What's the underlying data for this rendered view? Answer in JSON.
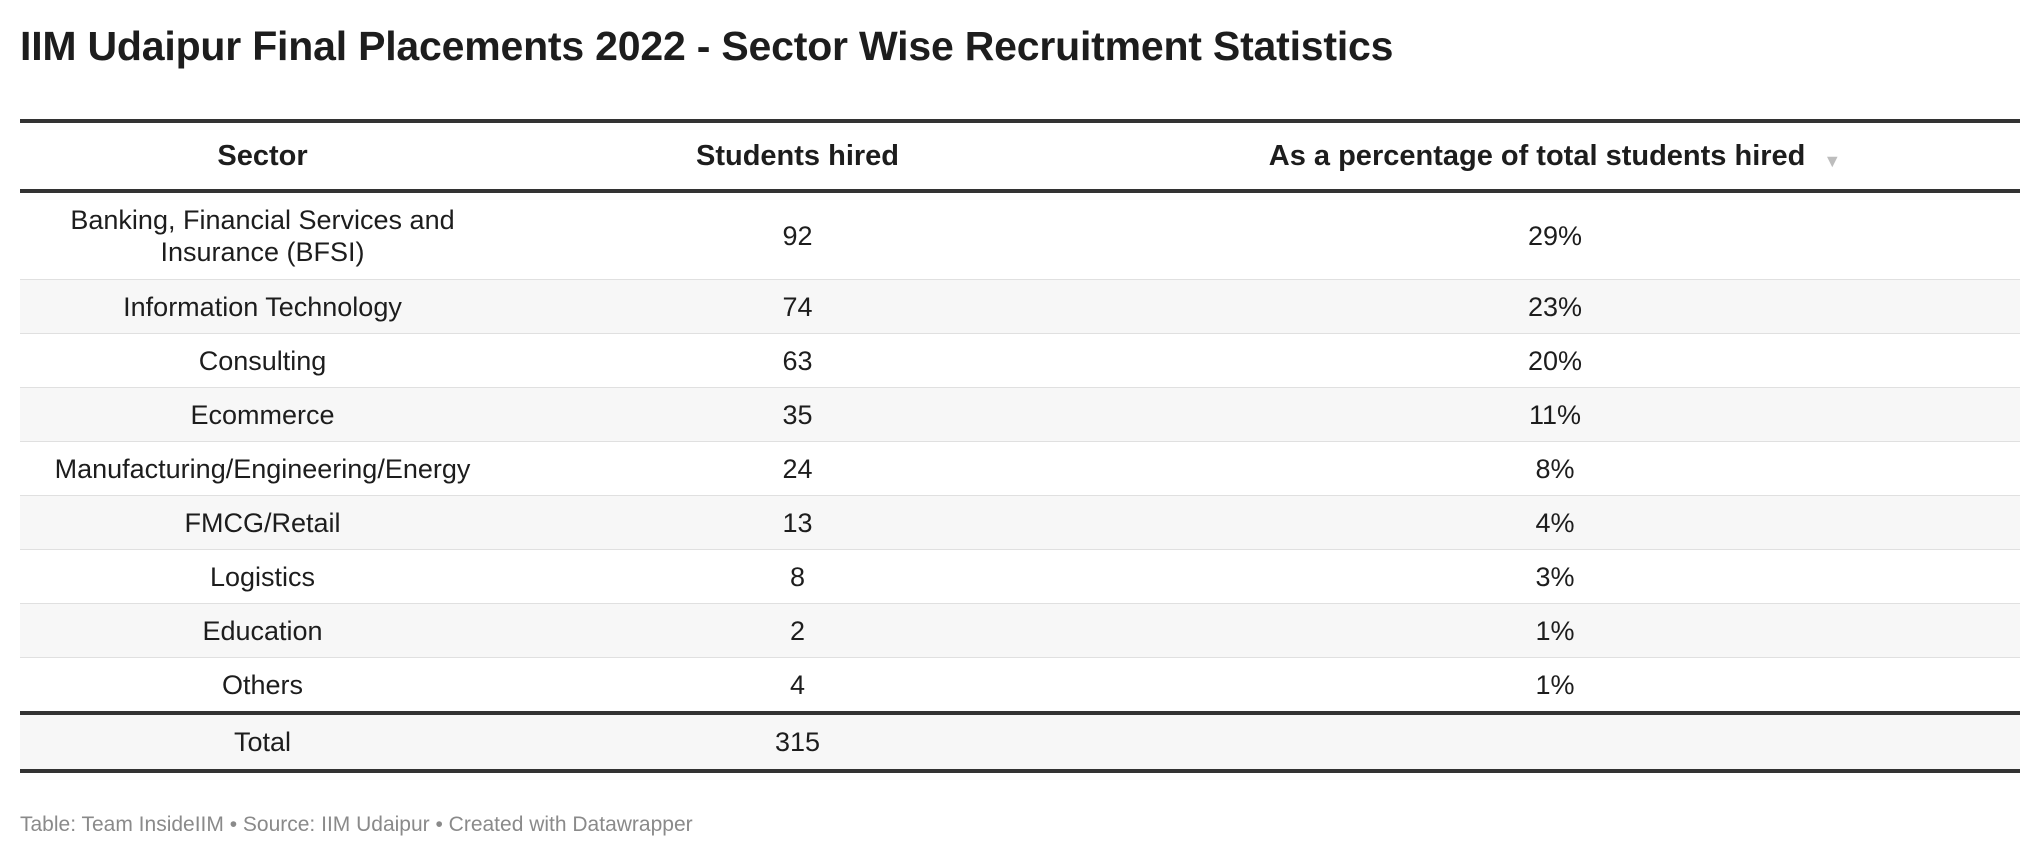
{
  "title": "IIM Udaipur Final Placements 2022 - Sector Wise Recruitment Statistics",
  "columns": [
    "Sector",
    "Students hired",
    "As a percentage of total students hired"
  ],
  "sort_icon": "triangle-down-icon",
  "rows": [
    {
      "sector": "Banking, Financial Services and Insurance (BFSI)",
      "hired": "92",
      "percent": "29%"
    },
    {
      "sector": "Information Technology",
      "hired": "74",
      "percent": "23%"
    },
    {
      "sector": "Consulting",
      "hired": "63",
      "percent": "20%"
    },
    {
      "sector": "Ecommerce",
      "hired": "35",
      "percent": "11%"
    },
    {
      "sector": "Manufacturing/Engineering/Energy",
      "hired": "24",
      "percent": "8%"
    },
    {
      "sector": "FMCG/Retail",
      "hired": "13",
      "percent": "4%"
    },
    {
      "sector": "Logistics",
      "hired": "8",
      "percent": "3%"
    },
    {
      "sector": "Education",
      "hired": "2",
      "percent": "1%"
    },
    {
      "sector": "Others",
      "hired": "4",
      "percent": "1%"
    }
  ],
  "total": {
    "label": "Total",
    "hired": "315",
    "percent": ""
  },
  "footer": "Table: Team InsideIIM • Source: IIM Udaipur • Created with Datawrapper",
  "chart_data": {
    "type": "table",
    "title": "IIM Udaipur Final Placements 2022 - Sector Wise Recruitment Statistics",
    "columns": [
      "Sector",
      "Students hired",
      "As a percentage of total students hired"
    ],
    "categories": [
      "Banking, Financial Services and Insurance (BFSI)",
      "Information Technology",
      "Consulting",
      "Ecommerce",
      "Manufacturing/Engineering/Energy",
      "FMCG/Retail",
      "Logistics",
      "Education",
      "Others"
    ],
    "series": [
      {
        "name": "Students hired",
        "values": [
          92,
          74,
          63,
          35,
          24,
          13,
          8,
          2,
          4
        ]
      },
      {
        "name": "As a percentage of total students hired",
        "values": [
          29,
          23,
          20,
          11,
          8,
          4,
          3,
          1,
          1
        ]
      }
    ],
    "total": {
      "Students hired": 315
    },
    "sorted_by": "As a percentage of total students hired",
    "sort_order": "descending"
  }
}
